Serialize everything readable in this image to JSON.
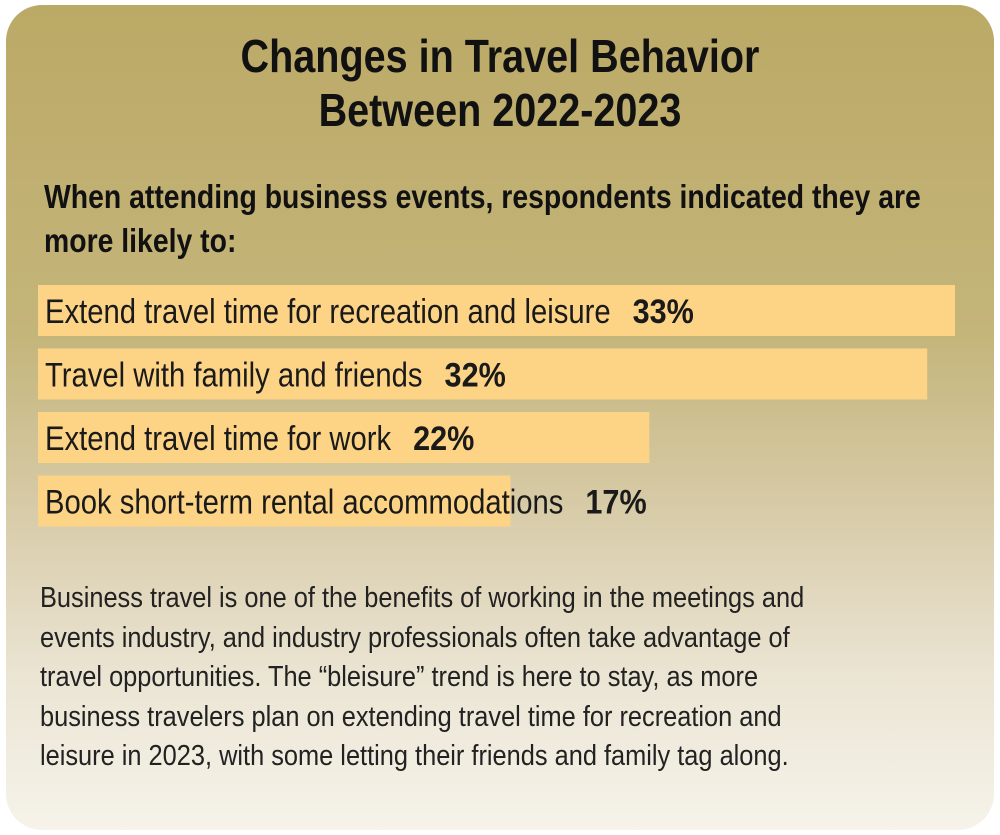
{
  "title_lines": [
    "Changes in Travel Behavior",
    "Between 2022-2023"
  ],
  "subtitle_lines": [
    "When attending business events, respondents indicated they are",
    "more likely to:"
  ],
  "chart_data": {
    "type": "bar",
    "orientation": "horizontal",
    "categories": [
      "Extend travel time for recreation and leisure",
      "Travel with family and friends",
      "Extend travel time for work",
      "Book short-term rental accommodations"
    ],
    "values": [
      33,
      32,
      22,
      17
    ],
    "value_labels": [
      "33%",
      "32%",
      "22%",
      "17%"
    ],
    "unit": "%",
    "grid": false,
    "legend": "none",
    "colors": {
      "bar": "#fdd486"
    }
  },
  "body_lines": [
    "Business travel is one of the benefits of working in the meetings and",
    "events industry, and industry professionals often take advantage of",
    "travel opportunities. The “bleisure” trend is here to stay, as more",
    "business travelers plan on extending travel time for recreation and",
    "leisure in 2023, with some letting their friends and family tag along."
  ],
  "colors": {
    "background_top": "#bba966",
    "background_bottom": "#f6f3ea",
    "text": "#111111"
  }
}
